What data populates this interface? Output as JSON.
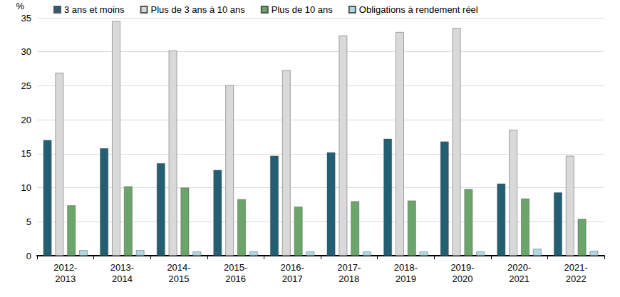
{
  "chart_data": {
    "type": "bar",
    "y_label": "%",
    "categories": [
      "2012-\n2013",
      "2013-\n2014",
      "2014-\n2015",
      "2015-\n2016",
      "2016-\n2017",
      "2017-\n2018",
      "2018-\n2019",
      "2019-\n2020",
      "2020-\n2021",
      "2021-\n2022"
    ],
    "series": [
      {
        "name": "3 ans et moins",
        "color": "#235f73",
        "values": [
          17.0,
          15.8,
          13.6,
          12.6,
          14.7,
          15.2,
          17.2,
          16.8,
          10.6,
          9.3
        ]
      },
      {
        "name": "Plus de 3 ans à 10 ans",
        "color": "#d9d9d9",
        "values": [
          26.9,
          34.5,
          30.2,
          25.1,
          27.3,
          32.4,
          32.9,
          33.5,
          18.5,
          14.7
        ]
      },
      {
        "name": "Plus de 10 ans",
        "color": "#6aa56a",
        "values": [
          7.4,
          10.2,
          10.0,
          8.3,
          7.2,
          8.0,
          8.1,
          9.8,
          8.4,
          5.4
        ]
      },
      {
        "name": "Obligations à rendement réel",
        "color": "#add8e6",
        "values": [
          0.8,
          0.8,
          0.6,
          0.6,
          0.6,
          0.6,
          0.6,
          0.6,
          1.0,
          0.7
        ]
      }
    ],
    "ylim": [
      0,
      35
    ],
    "yticks": [
      0,
      5,
      10,
      15,
      20,
      25,
      30,
      35
    ],
    "grid": true,
    "legend": "top"
  }
}
